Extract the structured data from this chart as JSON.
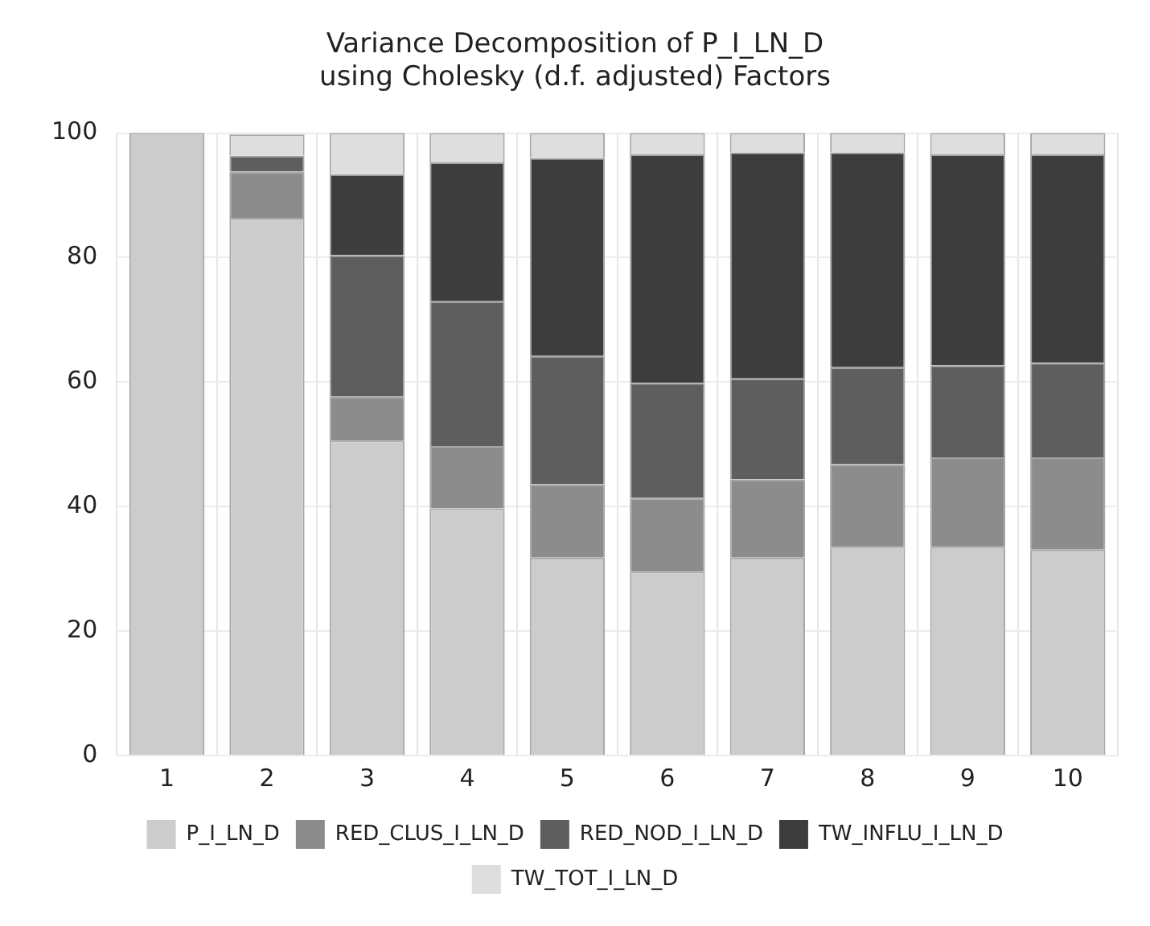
{
  "chart_data": {
    "type": "bar",
    "stacked": true,
    "title": "Variance Decomposition of P_I_LN_D\nusing Cholesky (d.f. adjusted) Factors",
    "categories": [
      "1",
      "2",
      "3",
      "4",
      "5",
      "6",
      "7",
      "8",
      "9",
      "10"
    ],
    "series": [
      {
        "name": "P_I_LN_D",
        "color": "#cccccc",
        "values": [
          100,
          86.4,
          50.6,
          39.7,
          31.8,
          29.5,
          31.8,
          33.5,
          33.5,
          33.1
        ]
      },
      {
        "name": "RED_CLUS_I_LN_D",
        "color": "#8c8c8c",
        "values": [
          0,
          7.4,
          7.1,
          10.0,
          11.8,
          11.9,
          12.6,
          13.3,
          14.4,
          14.8
        ]
      },
      {
        "name": "RED_NOD_I_LN_D",
        "color": "#5e5e5e",
        "values": [
          0,
          2.6,
          22.7,
          23.3,
          20.6,
          18.5,
          16.2,
          15.6,
          14.8,
          15.2
        ]
      },
      {
        "name": "TW_INFLU_I_LN_D",
        "color": "#3d3d3d",
        "values": [
          0,
          null,
          13.0,
          22.3,
          31.8,
          36.7,
          36.3,
          34.5,
          33.9,
          33.5
        ]
      },
      {
        "name": "TW_TOT_I_LN_D",
        "color": "#dedede",
        "values": [
          0,
          3.4,
          6.6,
          4.7,
          4.0,
          3.4,
          3.1,
          3.1,
          3.4,
          3.4
        ]
      }
    ],
    "ylim": [
      0,
      100
    ],
    "yticks": [
      0,
      20,
      40,
      60,
      80,
      100
    ],
    "grid": true,
    "legend": "bottom"
  }
}
